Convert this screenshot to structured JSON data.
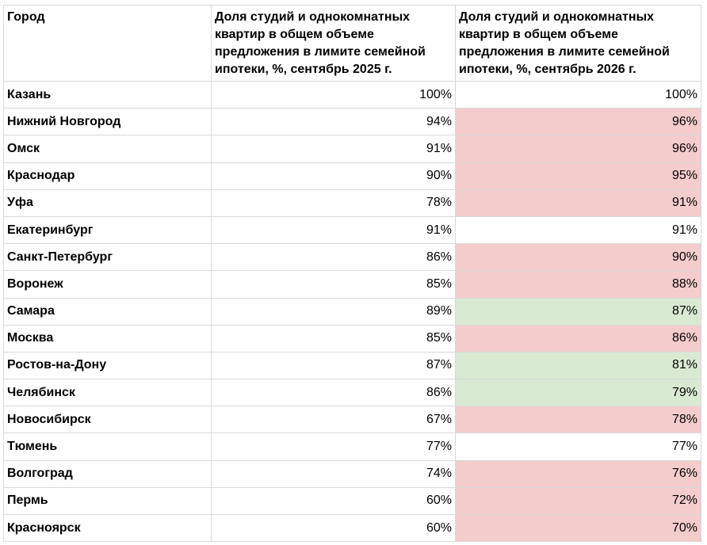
{
  "table": {
    "headers": [
      "Город",
      "Доля студий и однокомнатных квартир в общем объеме предложения в лимите семейной ипотеки, %, сентябрь 2025 г.",
      "Доля студий и однокомнатных квартир в общем объеме предложения в лимите семейной ипотеки, %, сентябрь 2026 г."
    ],
    "colors": {
      "increase": "#f4cccc",
      "decrease": "#d9ead3",
      "grid": "#d9d9d9"
    },
    "rows": [
      {
        "city": "Казань",
        "sep2025": "100%",
        "sep2026": "100%",
        "highlight": "none"
      },
      {
        "city": "Нижний Новгород",
        "sep2025": "94%",
        "sep2026": "96%",
        "highlight": "increase"
      },
      {
        "city": "Омск",
        "sep2025": "91%",
        "sep2026": "96%",
        "highlight": "increase"
      },
      {
        "city": "Краснодар",
        "sep2025": "90%",
        "sep2026": "95%",
        "highlight": "increase"
      },
      {
        "city": "Уфа",
        "sep2025": "78%",
        "sep2026": "91%",
        "highlight": "increase"
      },
      {
        "city": "Екатеринбург",
        "sep2025": "91%",
        "sep2026": "91%",
        "highlight": "none"
      },
      {
        "city": "Санкт-Петербург",
        "sep2025": "86%",
        "sep2026": "90%",
        "highlight": "increase"
      },
      {
        "city": "Воронеж",
        "sep2025": "85%",
        "sep2026": "88%",
        "highlight": "increase"
      },
      {
        "city": "Самара",
        "sep2025": "89%",
        "sep2026": "87%",
        "highlight": "decrease"
      },
      {
        "city": "Москва",
        "sep2025": "85%",
        "sep2026": "86%",
        "highlight": "increase"
      },
      {
        "city": "Ростов-на-Дону",
        "sep2025": "87%",
        "sep2026": "81%",
        "highlight": "decrease"
      },
      {
        "city": "Челябинск",
        "sep2025": "86%",
        "sep2026": "79%",
        "highlight": "decrease"
      },
      {
        "city": "Новосибирск",
        "sep2025": "67%",
        "sep2026": "78%",
        "highlight": "increase"
      },
      {
        "city": "Тюмень",
        "sep2025": "77%",
        "sep2026": "77%",
        "highlight": "none"
      },
      {
        "city": "Волгоград",
        "sep2025": "74%",
        "sep2026": "76%",
        "highlight": "increase"
      },
      {
        "city": "Пермь",
        "sep2025": "60%",
        "sep2026": "72%",
        "highlight": "increase"
      },
      {
        "city": "Красноярск",
        "sep2025": "60%",
        "sep2026": "70%",
        "highlight": "increase"
      }
    ]
  }
}
